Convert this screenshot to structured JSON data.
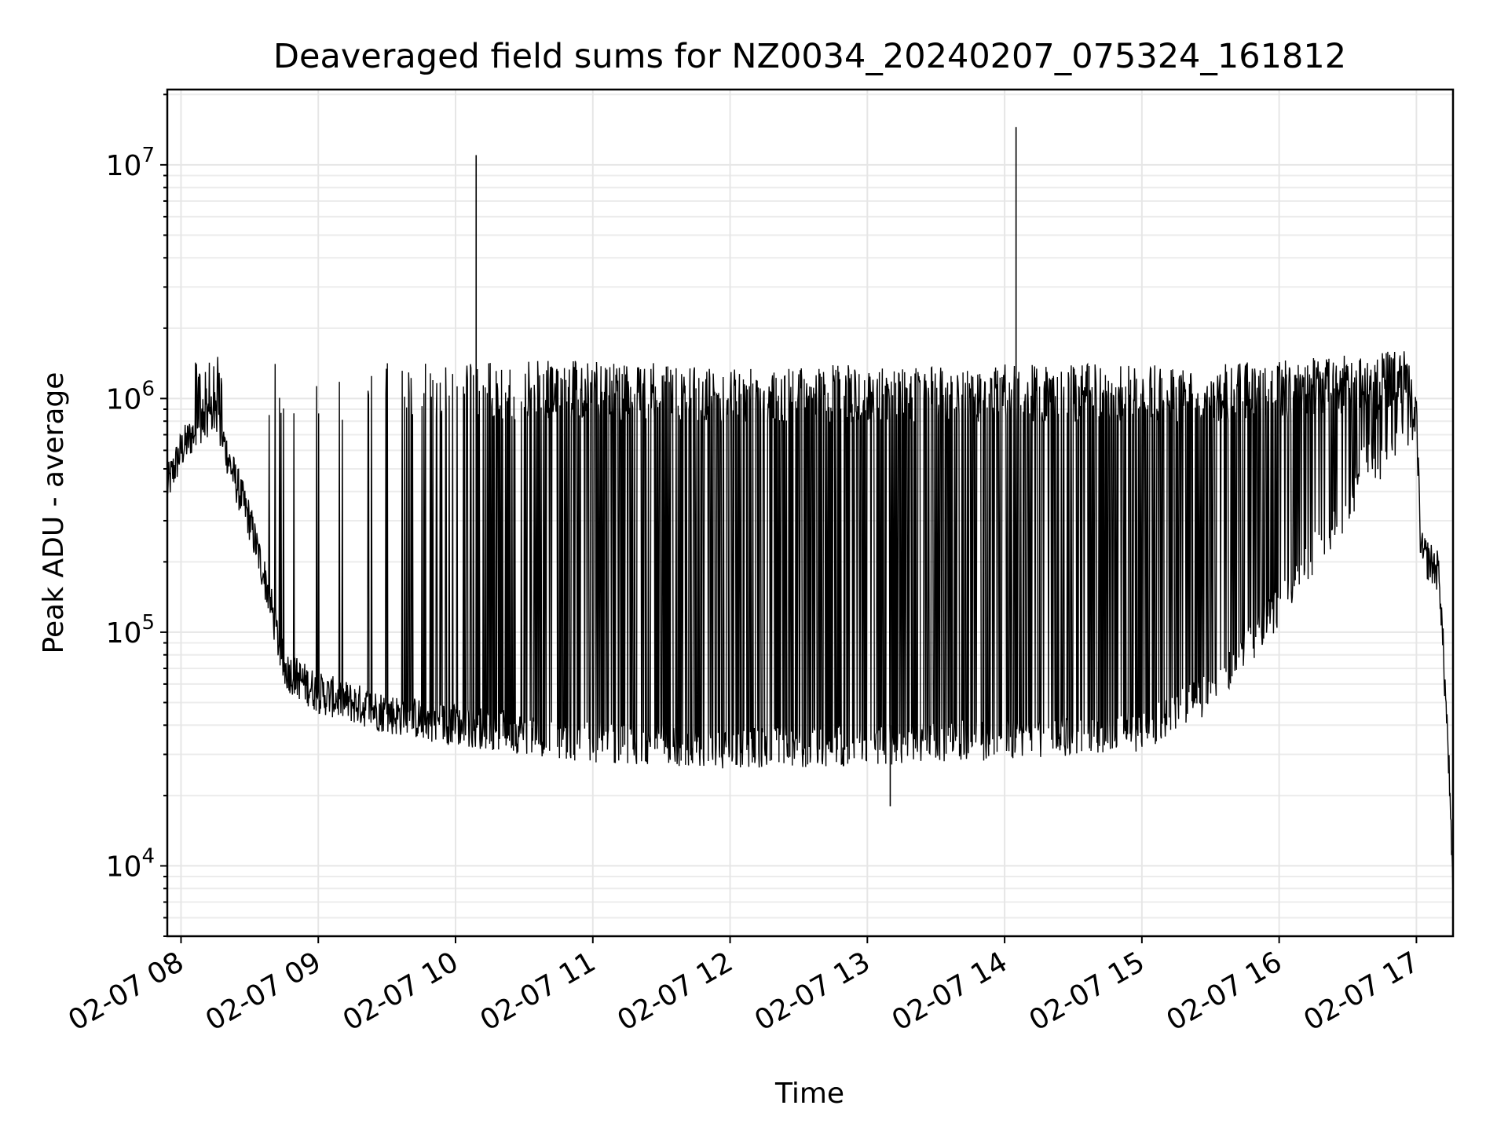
{
  "chart_data": {
    "type": "line",
    "title": "Deaveraged field sums for NZ0034_20240207_075324_161812",
    "xlabel": "Time",
    "ylabel": "Peak ADU - average",
    "yscale": "log",
    "xlim": [
      "2024-02-07 07:54",
      "2024-02-07 17:16"
    ],
    "ylim": [
      5000,
      21000000
    ],
    "grid": true,
    "x_ticks": [
      "02-07 08",
      "02-07 09",
      "02-07 10",
      "02-07 11",
      "02-07 12",
      "02-07 13",
      "02-07 14",
      "02-07 15",
      "02-07 16",
      "02-07 17"
    ],
    "x_tick_hours": [
      8,
      9,
      10,
      11,
      12,
      13,
      14,
      15,
      16,
      17
    ],
    "y_ticks": [
      {
        "base": "10",
        "exp": "4",
        "value": 10000
      },
      {
        "base": "10",
        "exp": "5",
        "value": 100000
      },
      {
        "base": "10",
        "exp": "6",
        "value": 1000000
      },
      {
        "base": "10",
        "exp": "7",
        "value": 10000000
      }
    ],
    "series": [
      {
        "color": "#000000",
        "points": [
          [
            "2024-02-07 07:54",
            420000
          ],
          [
            "2024-02-07 08:00",
            600000
          ],
          [
            "2024-02-07 08:10",
            820000
          ],
          [
            "2024-02-07 08:15",
            880000
          ],
          [
            "2024-02-07 08:22",
            500000
          ],
          [
            "2024-02-07 08:30",
            300000
          ],
          [
            "2024-02-07 08:38",
            150000
          ],
          [
            "2024-02-07 08:45",
            70000
          ],
          [
            "2024-02-07 09:00",
            55000
          ],
          [
            "2024-02-07 09:30",
            45000
          ],
          [
            "2024-02-07 10:00",
            40000
          ],
          [
            "2024-02-07 11:00",
            34000
          ],
          [
            "2024-02-07 12:00",
            32000
          ],
          [
            "2024-02-07 13:00",
            33000
          ],
          [
            "2024-02-07 14:00",
            35000
          ],
          [
            "2024-02-07 15:00",
            38000
          ],
          [
            "2024-02-07 15:30",
            55000
          ],
          [
            "2024-02-07 16:00",
            130000
          ],
          [
            "2024-02-07 16:30",
            350000
          ],
          [
            "2024-02-07 16:55",
            700000
          ],
          [
            "2024-02-07 17:00",
            850000
          ],
          [
            "2024-02-07 17:02",
            220000
          ],
          [
            "2024-02-07 17:10",
            180000
          ],
          [
            "2024-02-07 17:14",
            30000
          ],
          [
            "2024-02-07 17:16",
            7000
          ]
        ],
        "upper_envelope": [
          [
            "2024-02-07 08:20",
            1600000
          ],
          [
            "2024-02-07 09:00",
            1400000
          ],
          [
            "2024-02-07 10:00",
            1450000
          ],
          [
            "2024-02-07 11:00",
            1450000
          ],
          [
            "2024-02-07 12:00",
            1400000
          ],
          [
            "2024-02-07 13:00",
            1400000
          ],
          [
            "2024-02-07 14:00",
            1400000
          ],
          [
            "2024-02-07 15:00",
            1400000
          ],
          [
            "2024-02-07 16:00",
            1450000
          ],
          [
            "2024-02-07 16:50",
            1600000
          ]
        ],
        "spikes": [
          [
            "2024-02-07 10:09",
            11000000
          ],
          [
            "2024-02-07 14:05",
            14500000
          ]
        ],
        "minimum": [
          "2024-02-07 13:10",
          18000
        ]
      }
    ]
  }
}
